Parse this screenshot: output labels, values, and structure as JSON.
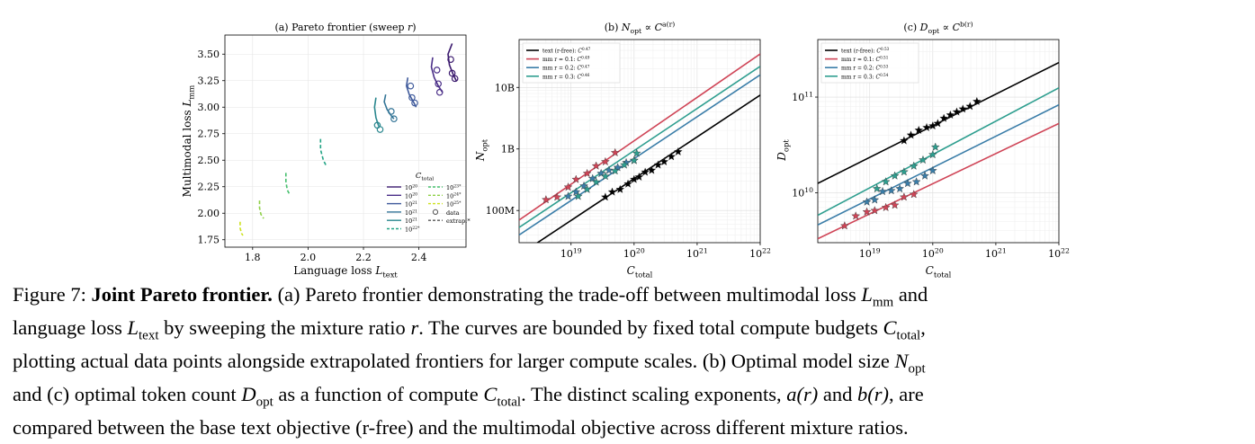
{
  "colors": {
    "c20": "#3b1a6e",
    "c20b": "#4b2f88",
    "c21": "#3f5a9b",
    "c21b": "#347597",
    "c21c": "#2a878e",
    "c22": "#22a384",
    "c23": "#45bf6d",
    "c24": "#8ed046",
    "c25": "#cde11d",
    "text": "#000000",
    "mm1": "#cf4456",
    "mm2": "#3a7da8",
    "mm3": "#2e9e8f"
  },
  "panel_a": {
    "title": "(a) Pareto frontier (sweep r)",
    "xlabel": "Language loss L_text",
    "ylabel": "Multimodal loss L_mm",
    "legend_title": "C_total",
    "legend_left": [
      "10^20",
      "10^20",
      "10^21",
      "10^21",
      "10^21",
      "10^22*"
    ],
    "legend_right": [
      "10^23*",
      "10^24*",
      "10^25*",
      "data",
      "extrap.*"
    ]
  },
  "panel_b": {
    "title": "(b) N_opt ∝ C^{a(r)}",
    "xlabel": "C_total",
    "ylabel": "N_opt",
    "legend": [
      "text (r-free): C^0.47",
      "mm r = 0.1: C^0.49",
      "mm r = 0.2: C^0.47",
      "mm r = 0.3: C^0.46"
    ]
  },
  "panel_c": {
    "title": "(c) D_opt ∝ C^{b(r)}",
    "xlabel": "C_total",
    "ylabel": "D_opt",
    "legend": [
      "text (r-free): C^0.53",
      "mm r = 0.1: C^0.51",
      "mm r = 0.2: C^0.53",
      "mm r = 0.3: C^0.54"
    ]
  },
  "chart_data": [
    {
      "type": "line",
      "title": "(a) Pareto frontier (sweep r)",
      "xlabel": "Language loss L_text",
      "ylabel": "Multimodal loss L_mm",
      "xlim": [
        1.7,
        2.57
      ],
      "ylim": [
        1.68,
        3.68
      ],
      "xticks": [
        "1.8",
        "2.0",
        "2.2",
        "2.4"
      ],
      "yticks": [
        "1.75",
        "2.00",
        "2.25",
        "2.50",
        "2.75",
        "3.00",
        "3.25",
        "3.50"
      ],
      "legend_position": "lower-right",
      "series": [
        {
          "name": "10^20",
          "color_key": "c20",
          "style": "solid",
          "line": [
            [
              2.52,
              3.6
            ],
            [
              2.505,
              3.5
            ],
            [
              2.51,
              3.4
            ],
            [
              2.525,
              3.3
            ],
            [
              2.535,
              3.25
            ]
          ],
          "points": [
            [
              2.515,
              3.45
            ],
            [
              2.52,
              3.32
            ],
            [
              2.53,
              3.27
            ]
          ]
        },
        {
          "name": "10^20",
          "color_key": "c20b",
          "style": "solid",
          "line": [
            [
              2.45,
              3.47
            ],
            [
              2.445,
              3.38
            ],
            [
              2.455,
              3.28
            ],
            [
              2.47,
              3.2
            ],
            [
              2.485,
              3.14
            ]
          ],
          "points": [
            [
              2.465,
              3.35
            ],
            [
              2.47,
              3.22
            ],
            [
              2.475,
              3.14
            ]
          ]
        },
        {
          "name": "10^21",
          "color_key": "c21",
          "style": "solid",
          "line": [
            [
              2.36,
              3.28
            ],
            [
              2.355,
              3.2
            ],
            [
              2.365,
              3.12
            ],
            [
              2.38,
              3.05
            ],
            [
              2.39,
              3.0
            ]
          ],
          "points": [
            [
              2.37,
              3.2
            ],
            [
              2.375,
              3.09
            ],
            [
              2.385,
              3.04
            ]
          ]
        },
        {
          "name": "10^21",
          "color_key": "c21b",
          "style": "solid",
          "line": [
            [
              2.28,
              3.12
            ],
            [
              2.275,
              3.05
            ],
            [
              2.285,
              2.98
            ],
            [
              2.3,
              2.92
            ],
            [
              2.31,
              2.89
            ]
          ],
          "points": [
            [
              2.3,
              2.96
            ],
            [
              2.31,
              2.89
            ]
          ]
        },
        {
          "name": "10^21",
          "color_key": "c21c",
          "style": "solid",
          "line": [
            [
              2.245,
              3.09
            ],
            [
              2.24,
              3.0
            ],
            [
              2.245,
              2.9
            ],
            [
              2.255,
              2.82
            ]
          ],
          "points": [
            [
              2.25,
              2.83
            ],
            [
              2.26,
              2.79
            ]
          ]
        },
        {
          "name": "10^22*",
          "color_key": "c22",
          "style": "dashed",
          "line": [
            [
              2.045,
              2.7
            ],
            [
              2.045,
              2.6
            ],
            [
              2.055,
              2.5
            ],
            [
              2.065,
              2.45
            ]
          ],
          "points": []
        },
        {
          "name": "10^23*",
          "color_key": "c23",
          "style": "dashed",
          "line": [
            [
              1.92,
              2.38
            ],
            [
              1.92,
              2.3
            ],
            [
              1.925,
              2.22
            ],
            [
              1.935,
              2.17
            ]
          ],
          "points": []
        },
        {
          "name": "10^24*",
          "color_key": "c24",
          "style": "dashed",
          "line": [
            [
              1.825,
              2.12
            ],
            [
              1.825,
              2.05
            ],
            [
              1.83,
              1.99
            ],
            [
              1.84,
              1.95
            ]
          ],
          "points": []
        },
        {
          "name": "10^25*",
          "color_key": "c25",
          "style": "dashed",
          "line": [
            [
              1.755,
              1.92
            ],
            [
              1.755,
              1.86
            ],
            [
              1.76,
              1.81
            ],
            [
              1.765,
              1.79
            ]
          ],
          "points": []
        }
      ]
    },
    {
      "type": "line",
      "title": "(b) N_opt ∝ C^{a(r)}",
      "xlabel": "C_total",
      "ylabel": "N_opt",
      "x_scale": "log",
      "y_scale": "log",
      "xlim": [
        1.5e+18,
        1e+22
      ],
      "ylim": [
        30000000.0,
        60000000000.0
      ],
      "xticks": [
        "10^19",
        "10^20",
        "10^21",
        "10^22"
      ],
      "yticks": [
        "100M",
        "1B",
        "10B"
      ],
      "legend_position": "top-left",
      "series": [
        {
          "name": "text (r-free): C^0.47",
          "color_key": "text",
          "exponent": 0.47,
          "line": [
            [
              1.5e+18,
              19000000.0
            ],
            [
              1e+22,
              7500000000.0
            ]
          ],
          "points": [
            [
              3.5e+19,
              165000000.0
            ],
            [
              4.5e+19,
              200000000.0
            ],
            [
              6e+19,
              220000000.0
            ],
            [
              8e+19,
              270000000.0
            ],
            [
              1e+20,
              320000000.0
            ],
            [
              1.2e+20,
              350000000.0
            ],
            [
              1.5e+20,
              420000000.0
            ],
            [
              1.9e+20,
              450000000.0
            ],
            [
              2.4e+20,
              550000000.0
            ],
            [
              3e+20,
              620000000.0
            ],
            [
              3.9e+20,
              750000000.0
            ],
            [
              5e+20,
              900000000.0
            ]
          ]
        },
        {
          "name": "mm r = 0.1: C^0.49",
          "color_key": "mm1",
          "exponent": 0.49,
          "line": [
            [
              1.5e+18,
              70000000.0
            ],
            [
              1e+22,
              35000000000.0
            ]
          ],
          "points": [
            [
              4e+18,
              150000000.0
            ],
            [
              6e+18,
              165000000.0
            ],
            [
              9e+18,
              240000000.0
            ],
            [
              1.2e+19,
              320000000.0
            ],
            [
              1.8e+19,
              400000000.0
            ],
            [
              2.5e+19,
              530000000.0
            ],
            [
              3.5e+19,
              620000000.0
            ],
            [
              5e+19,
              870000000.0
            ]
          ]
        },
        {
          "name": "mm r = 0.2: C^0.47",
          "color_key": "mm2",
          "exponent": 0.47,
          "line": [
            [
              1.5e+18,
              40000000.0
            ],
            [
              1e+22,
              16000000000.0
            ]
          ],
          "points": [
            [
              9e+18,
              170000000.0
            ],
            [
              1.2e+19,
              200000000.0
            ],
            [
              1.6e+19,
              250000000.0
            ],
            [
              2.2e+19,
              330000000.0
            ],
            [
              3e+19,
              400000000.0
            ],
            [
              4e+19,
              450000000.0
            ],
            [
              5.5e+19,
              500000000.0
            ],
            [
              7.5e+19,
              600000000.0
            ],
            [
              1e+20,
              650000000.0
            ]
          ]
        },
        {
          "name": "mm r = 0.3: C^0.46",
          "color_key": "mm3",
          "exponent": 0.46,
          "line": [
            [
              1.5e+18,
              53000000.0
            ],
            [
              1e+22,
              22000000000.0
            ]
          ],
          "points": [
            [
              1.3e+19,
              170000000.0
            ],
            [
              1.8e+19,
              220000000.0
            ],
            [
              2.5e+19,
              290000000.0
            ],
            [
              3.5e+19,
              360000000.0
            ],
            [
              5e+19,
              440000000.0
            ],
            [
              7e+19,
              550000000.0
            ],
            [
              1e+20,
              650000000.0
            ],
            [
              1.1e+20,
              850000000.0
            ]
          ]
        }
      ]
    },
    {
      "type": "line",
      "title": "(c) D_opt ∝ C^{b(r)}",
      "xlabel": "C_total",
      "ylabel": "D_opt",
      "x_scale": "log",
      "y_scale": "log",
      "xlim": [
        1.5e+18,
        1e+22
      ],
      "ylim": [
        3000000000.0,
        400000000000.0
      ],
      "xticks": [
        "10^19",
        "10^20",
        "10^21",
        "10^22"
      ],
      "yticks": [
        "10^10",
        "10^11"
      ],
      "legend_position": "top-left",
      "series": [
        {
          "name": "text (r-free): C^0.53",
          "color_key": "text",
          "exponent": 0.53,
          "line": [
            [
              1.5e+18,
              12500000000.0
            ],
            [
              1e+22,
              230000000000.0
            ]
          ],
          "points": [
            [
              3.5e+19,
              35000000000.0
            ],
            [
              4.5e+19,
              40000000000.0
            ],
            [
              6e+19,
              45000000000.0
            ],
            [
              8e+19,
              48000000000.0
            ],
            [
              1e+20,
              50000000000.0
            ],
            [
              1.2e+20,
              53000000000.0
            ],
            [
              1.5e+20,
              60000000000.0
            ],
            [
              1.9e+20,
              65000000000.0
            ],
            [
              2.4e+20,
              70000000000.0
            ],
            [
              3e+20,
              75000000000.0
            ],
            [
              3.9e+20,
              80000000000.0
            ],
            [
              5e+20,
              90000000000.0
            ]
          ]
        },
        {
          "name": "mm r = 0.1: C^0.51",
          "color_key": "mm1",
          "exponent": 0.51,
          "line": [
            [
              1.5e+18,
              3300000000.0
            ],
            [
              1e+22,
              53000000000.0
            ]
          ],
          "points": [
            [
              4e+18,
              4500000000.0
            ],
            [
              6e+18,
              5700000000.0
            ],
            [
              9e+18,
              6300000000.0
            ],
            [
              1.2e+19,
              6500000000.0
            ],
            [
              1.8e+19,
              7000000000.0
            ],
            [
              2.5e+19,
              7400000000.0
            ],
            [
              3.5e+19,
              9000000000.0
            ],
            [
              5e+19,
              9600000000.0
            ]
          ]
        },
        {
          "name": "mm r = 0.2: C^0.53",
          "color_key": "mm2",
          "exponent": 0.53,
          "line": [
            [
              1.5e+18,
              4600000000.0
            ],
            [
              1e+22,
              83000000000.0
            ]
          ],
          "points": [
            [
              9e+18,
              8000000000.0
            ],
            [
              1.2e+19,
              8400000000.0
            ],
            [
              1.6e+19,
              10300000000.0
            ],
            [
              2.2e+19,
              10500000000.0
            ],
            [
              3e+19,
              11000000000.0
            ],
            [
              4e+19,
              12500000000.0
            ],
            [
              5.5e+19,
              13000000000.0
            ],
            [
              7.5e+19,
              15000000000.0
            ],
            [
              1e+20,
              17000000000.0
            ]
          ]
        },
        {
          "name": "mm r = 0.3: C^0.54",
          "color_key": "mm3",
          "exponent": 0.54,
          "line": [
            [
              1.5e+18,
              5800000000.0
            ],
            [
              1e+22,
              125000000000.0
            ]
          ],
          "points": [
            [
              1.3e+19,
              11000000000.0
            ],
            [
              1.8e+19,
              13000000000.0
            ],
            [
              2.5e+19,
              15000000000.0
            ],
            [
              3.5e+19,
              16500000000.0
            ],
            [
              5e+19,
              19000000000.0
            ],
            [
              7e+19,
              22000000000.0
            ],
            [
              1e+20,
              25000000000.0
            ],
            [
              1.1e+20,
              30000000000.0
            ]
          ]
        }
      ]
    }
  ],
  "caption": {
    "label": "Figure 7:",
    "title": "Joint Pareto frontier.",
    "line1_a": "(a) Pareto frontier demonstrating the trade-off between multimodal loss ",
    "L": "L",
    "mm": "mm",
    "line2_a": "language loss ",
    "text_sub": "text",
    "line2_b": " by sweeping the mixture ratio ",
    "r": "r",
    "line2_c": ". The curves are bounded by fixed total compute budgets ",
    "C": "C",
    "total_sub": "total",
    "line2_d": ",",
    "and": " and",
    "line3": "plotting actual data points alongside extrapolated frontiers for larger compute scales. (b) Optimal model size ",
    "N": "N",
    "opt_sub": "opt",
    "line4_a": "and (c) optimal token count ",
    "D": "D",
    "line4_b": " as a function of compute ",
    "line4_c": ". The distinct scaling exponents, ",
    "a_r": "a(r)",
    "and2": " and ",
    "b_r": "b(r)",
    "line4_d": ", are",
    "line5": "compared between the base text objective (r-free) and the multimodal objective across different mixture ratios."
  }
}
